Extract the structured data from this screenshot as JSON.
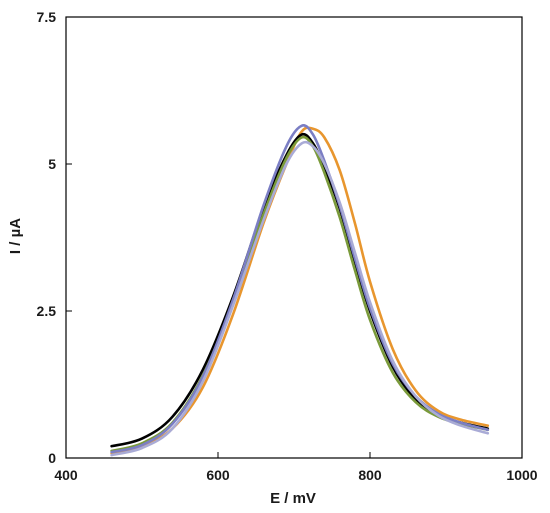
{
  "chart_data": {
    "type": "line",
    "xlabel": "E / mV",
    "ylabel": "I / µA",
    "xlim": [
      400,
      1000
    ],
    "ylim": [
      0,
      7.5
    ],
    "xticks": [
      400,
      600,
      800,
      1000
    ],
    "yticks": [
      0,
      2.5,
      5,
      7.5
    ],
    "xtick_labels": [
      "400",
      "600",
      "800",
      "1000"
    ],
    "ytick_labels": [
      "0",
      "2.5",
      "5",
      "7.5"
    ],
    "grid": false,
    "legend": "none",
    "series": [
      {
        "color": "#e8962e",
        "x": [
          460,
          500,
          540,
          580,
          620,
          660,
          690,
          710,
          725,
          740,
          760,
          780,
          800,
          830,
          860,
          890,
          920,
          955
        ],
        "y": [
          0.08,
          0.2,
          0.5,
          1.2,
          2.45,
          4.0,
          5.0,
          5.55,
          5.6,
          5.45,
          4.9,
          4.0,
          3.0,
          1.85,
          1.15,
          0.8,
          0.65,
          0.55
        ]
      },
      {
        "color": "#000000",
        "x": [
          460,
          500,
          540,
          580,
          620,
          660,
          690,
          710,
          725,
          740,
          760,
          780,
          800,
          830,
          860,
          890,
          920,
          955
        ],
        "y": [
          0.2,
          0.33,
          0.7,
          1.5,
          2.75,
          4.25,
          5.15,
          5.5,
          5.35,
          4.95,
          4.25,
          3.35,
          2.5,
          1.55,
          1.0,
          0.72,
          0.6,
          0.5
        ]
      },
      {
        "color": "#7a9a3a",
        "x": [
          460,
          500,
          540,
          580,
          620,
          660,
          690,
          710,
          725,
          740,
          760,
          780,
          800,
          830,
          860,
          890,
          920,
          955
        ],
        "y": [
          0.12,
          0.25,
          0.6,
          1.4,
          2.65,
          4.15,
          5.1,
          5.45,
          5.3,
          4.85,
          4.1,
          3.2,
          2.35,
          1.45,
          0.95,
          0.7,
          0.58,
          0.48
        ]
      },
      {
        "color": "#7b7ec4",
        "x": [
          460,
          500,
          540,
          580,
          620,
          660,
          690,
          710,
          725,
          740,
          760,
          780,
          800,
          830,
          860,
          890,
          920,
          955
        ],
        "y": [
          0.1,
          0.22,
          0.58,
          1.38,
          2.7,
          4.3,
          5.3,
          5.65,
          5.5,
          5.05,
          4.3,
          3.4,
          2.55,
          1.6,
          1.05,
          0.75,
          0.6,
          0.48
        ]
      },
      {
        "color": "#a9abd6",
        "x": [
          460,
          500,
          540,
          580,
          620,
          660,
          690,
          710,
          725,
          740,
          760,
          780,
          800,
          830,
          860,
          890,
          920,
          955
        ],
        "y": [
          0.05,
          0.17,
          0.5,
          1.3,
          2.6,
          4.05,
          5.0,
          5.35,
          5.3,
          5.0,
          4.35,
          3.5,
          2.65,
          1.65,
          1.05,
          0.72,
          0.55,
          0.42
        ]
      }
    ]
  }
}
